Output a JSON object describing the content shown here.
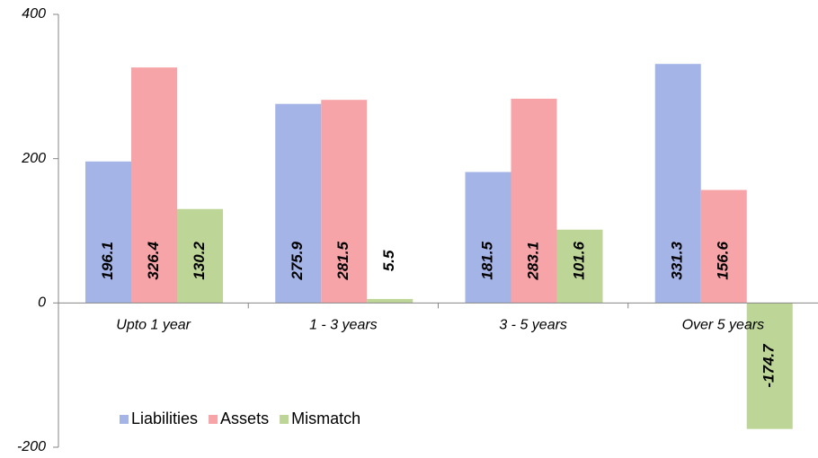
{
  "chart_data": {
    "type": "bar",
    "categories": [
      "Upto 1 year",
      "1 - 3 years",
      "3 - 5 years",
      "Over 5 years"
    ],
    "series": [
      {
        "name": "Liabilities",
        "color": "#a4b4e6",
        "values": [
          196.1,
          275.9,
          181.5,
          331.3
        ]
      },
      {
        "name": "Assets",
        "color": "#f6a4a8",
        "values": [
          326.4,
          281.5,
          283.1,
          156.6
        ]
      },
      {
        "name": "Mismatch",
        "color": "#bdd697",
        "values": [
          130.2,
          5.5,
          101.6,
          -174.7
        ]
      }
    ],
    "ylim": [
      -200,
      400
    ],
    "yticks": [
      -200,
      0,
      200,
      400
    ],
    "legend": "lower left"
  }
}
